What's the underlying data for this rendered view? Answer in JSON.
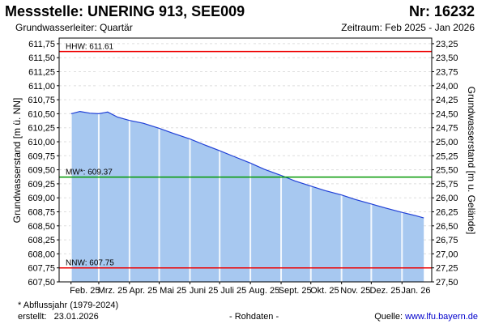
{
  "header": {
    "title": "Messstelle: UNERING 913, SEE009",
    "number": "Nr: 16232",
    "aquifer": "Grundwasserleiter: Quartär",
    "period": "Zeitraum: Feb 2025 - Jan 2026"
  },
  "footer": {
    "note": "* Abflussjahr (1979-2024)",
    "created_label": "erstellt:",
    "created_date": "23.01.2026",
    "rawdata": "- Rohdaten -",
    "source_label": "Quelle:",
    "source_url": "www.lfu.bayern.de"
  },
  "chart_data": {
    "type": "area",
    "ylabel": "Grundwasserstand [m ü. NN]",
    "ylabel_right": "Grundwasserstand [m u. Gelände]",
    "ylim": [
      607.5,
      611.85
    ],
    "y_ticks": [
      "607,50",
      "607,75",
      "608,00",
      "608,25",
      "608,50",
      "608,75",
      "609,00",
      "609,25",
      "609,50",
      "609,75",
      "610,00",
      "610,25",
      "610,50",
      "610,75",
      "611,00",
      "611,25",
      "611,50",
      "611,75"
    ],
    "y2_ticks": [
      "27,50",
      "27,25",
      "27,00",
      "26,75",
      "26,50",
      "26,25",
      "26,00",
      "25,75",
      "25,50",
      "25,25",
      "25,00",
      "24,75",
      "24,50",
      "24,25",
      "24,00",
      "23,75",
      "23,50",
      "23,25"
    ],
    "months": [
      "Feb. 25",
      "Mrz. 25",
      "Apr. 25",
      "Mai 25",
      "Juni 25",
      "Juli 25",
      "Aug. 25",
      "Sept. 25",
      "Okt. 25",
      "Nov. 25",
      "Dez. 25",
      "Jan. 26"
    ],
    "series": [
      {
        "x": [
          "2025-02-01",
          "2025-02-10",
          "2025-02-20",
          "2025-03-01",
          "2025-03-10",
          "2025-03-20",
          "2025-04-01",
          "2025-04-15",
          "2025-05-01",
          "2025-05-15",
          "2025-06-01",
          "2025-06-15",
          "2025-07-01",
          "2025-07-15",
          "2025-08-01",
          "2025-08-15",
          "2025-09-01",
          "2025-09-15",
          "2025-10-01",
          "2025-10-15",
          "2025-11-01",
          "2025-11-15",
          "2025-12-01",
          "2025-12-15",
          "2026-01-01",
          "2026-01-15",
          "2026-01-23"
        ],
        "y": [
          610.5,
          610.54,
          610.51,
          610.5,
          610.53,
          610.44,
          610.38,
          610.33,
          610.24,
          610.15,
          610.05,
          609.95,
          609.84,
          609.74,
          609.62,
          609.51,
          609.4,
          609.3,
          609.21,
          609.13,
          609.05,
          608.97,
          608.89,
          608.82,
          608.74,
          608.68,
          608.64
        ]
      }
    ],
    "reference_lines": [
      {
        "label": "HHW: 611.61",
        "value": 611.61,
        "color": "#ee0000"
      },
      {
        "label": "MW*: 609.37",
        "value": 609.37,
        "color": "#009900"
      },
      {
        "label": "NNW: 607.75",
        "value": 607.75,
        "color": "#ee0000"
      }
    ],
    "fill_color": "#a7c8f0",
    "line_color": "#1f3fd6",
    "grid": true
  }
}
